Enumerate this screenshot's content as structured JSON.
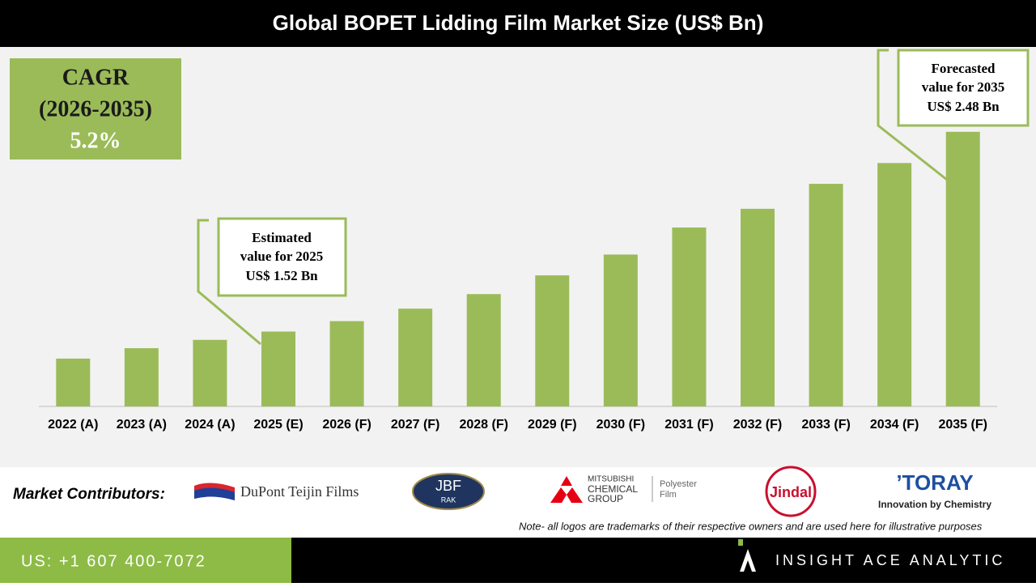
{
  "header": {
    "title": "Global BOPET Lidding Film Market Size (US$ Bn)"
  },
  "cagr": {
    "lines": [
      "CAGR",
      "(2026-2035)",
      "5.2%"
    ]
  },
  "chart_data": {
    "type": "bar",
    "categories": [
      "2022 (A)",
      "2023 (A)",
      "2024 (A)",
      "2025 (E)",
      "2026 (F)",
      "2027 (F)",
      "2028 (F)",
      "2029 (F)",
      "2030 (F)",
      "2031 (F)",
      "2032 (F)",
      "2033 (F)",
      "2034 (F)",
      "2035 (F)"
    ],
    "values": [
      1.39,
      1.44,
      1.48,
      1.52,
      1.57,
      1.63,
      1.7,
      1.79,
      1.89,
      2.02,
      2.11,
      2.23,
      2.33,
      2.48
    ],
    "color": "#9bbb59",
    "ylim": [
      1.16,
      2.88
    ],
    "grid": false,
    "annotations": [
      [
        "Estimated",
        "value for 2025",
        "US$ 1.52 Bn"
      ],
      [
        "Forecasted",
        "value for 2035",
        "US$ 2.48 Bn"
      ]
    ]
  },
  "contributors": {
    "label": "Market Contributors:",
    "logos": [
      "DuPont Teijin Films",
      "JBF",
      "RAK",
      "MITSUBISHI",
      "CHEMICAL",
      "GROUP",
      "Polyester",
      "Film",
      "Jindal",
      "’TORAY",
      "Innovation by Chemistry"
    ],
    "note": "Note- all logos are trademarks of their respective owners and are used here for illustrative purposes"
  },
  "footer": {
    "phone": "US: +1 607 400-7072",
    "company": "INSIGHT ACE ANALYTIC"
  }
}
